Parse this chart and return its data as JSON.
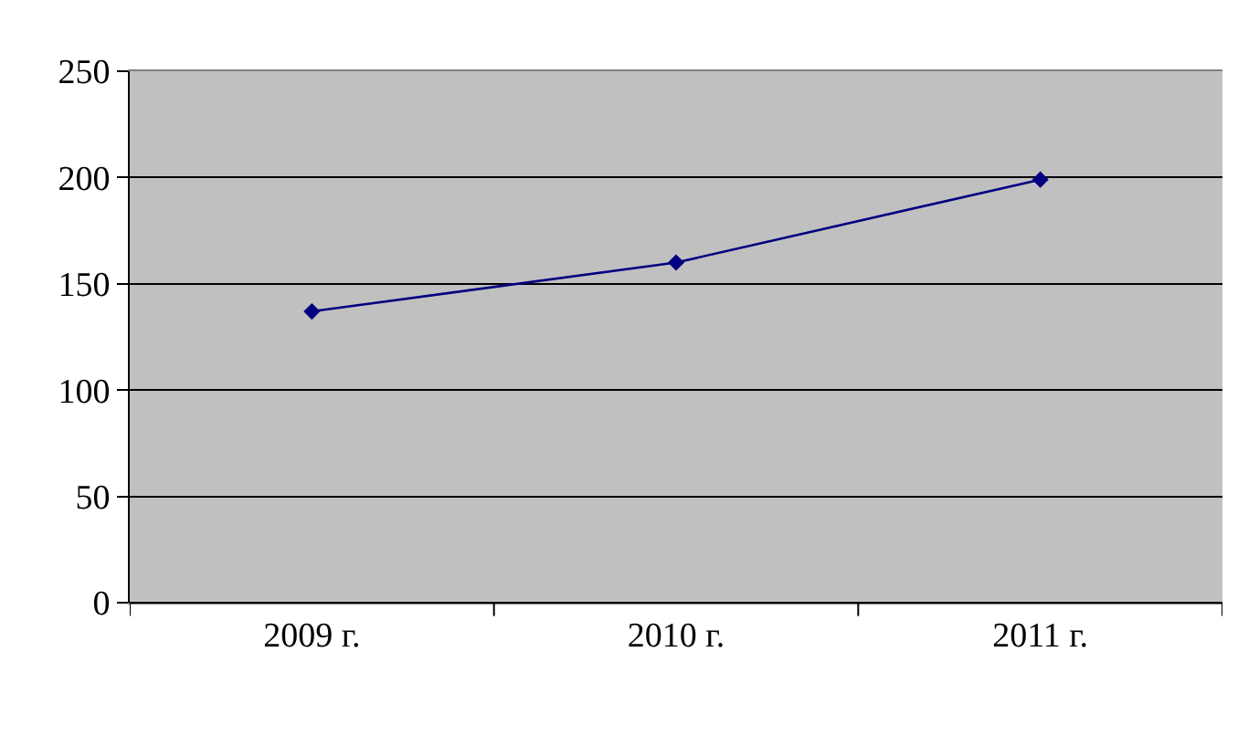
{
  "chart_data": {
    "type": "line",
    "categories": [
      "2009 г.",
      "2010 г.",
      "2011 г."
    ],
    "series": [
      {
        "color": "#000080",
        "values": [
          137,
          160,
          199
        ]
      }
    ],
    "ylim": [
      0,
      250
    ],
    "yticks": [
      0,
      50,
      100,
      150,
      200,
      250
    ],
    "grid": "y",
    "marker": "diamond",
    "line_style": "solid",
    "legend": false
  }
}
